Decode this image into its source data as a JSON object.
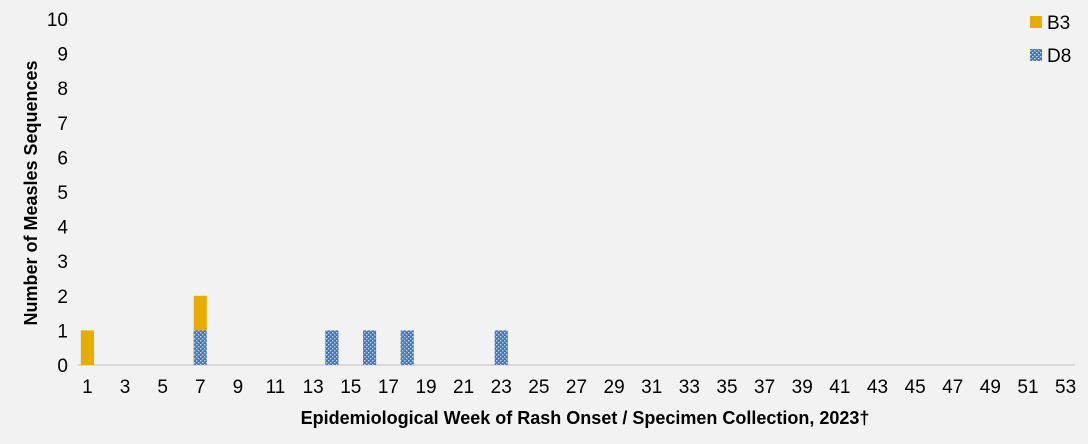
{
  "chart_data": {
    "type": "bar",
    "stacked": true,
    "xlabel": "Epidemiological Week of Rash Onset / Specimen Collection, 2023†",
    "ylabel": "Number of Measles Sequences",
    "ylim": [
      0,
      10
    ],
    "yticks": [
      0,
      1,
      2,
      3,
      4,
      5,
      6,
      7,
      8,
      9,
      10
    ],
    "xticks": [
      1,
      3,
      5,
      7,
      9,
      11,
      13,
      15,
      17,
      19,
      21,
      23,
      25,
      27,
      29,
      31,
      33,
      35,
      37,
      39,
      41,
      43,
      45,
      47,
      49,
      51,
      53
    ],
    "legend_position": "top-right",
    "grid": false,
    "series": [
      {
        "name": "D8",
        "color": "#4472c4",
        "pattern": "dotted",
        "points": [
          {
            "x": 7,
            "y": 1
          },
          {
            "x": 14,
            "y": 1
          },
          {
            "x": 16,
            "y": 1
          },
          {
            "x": 18,
            "y": 1
          },
          {
            "x": 23,
            "y": 1
          }
        ]
      },
      {
        "name": "B3",
        "color": "#e6ac00",
        "pattern": "solid",
        "points": [
          {
            "x": 1,
            "y": 1
          },
          {
            "x": 7,
            "y": 1
          }
        ]
      }
    ],
    "legend_order": [
      "B3",
      "D8"
    ]
  }
}
